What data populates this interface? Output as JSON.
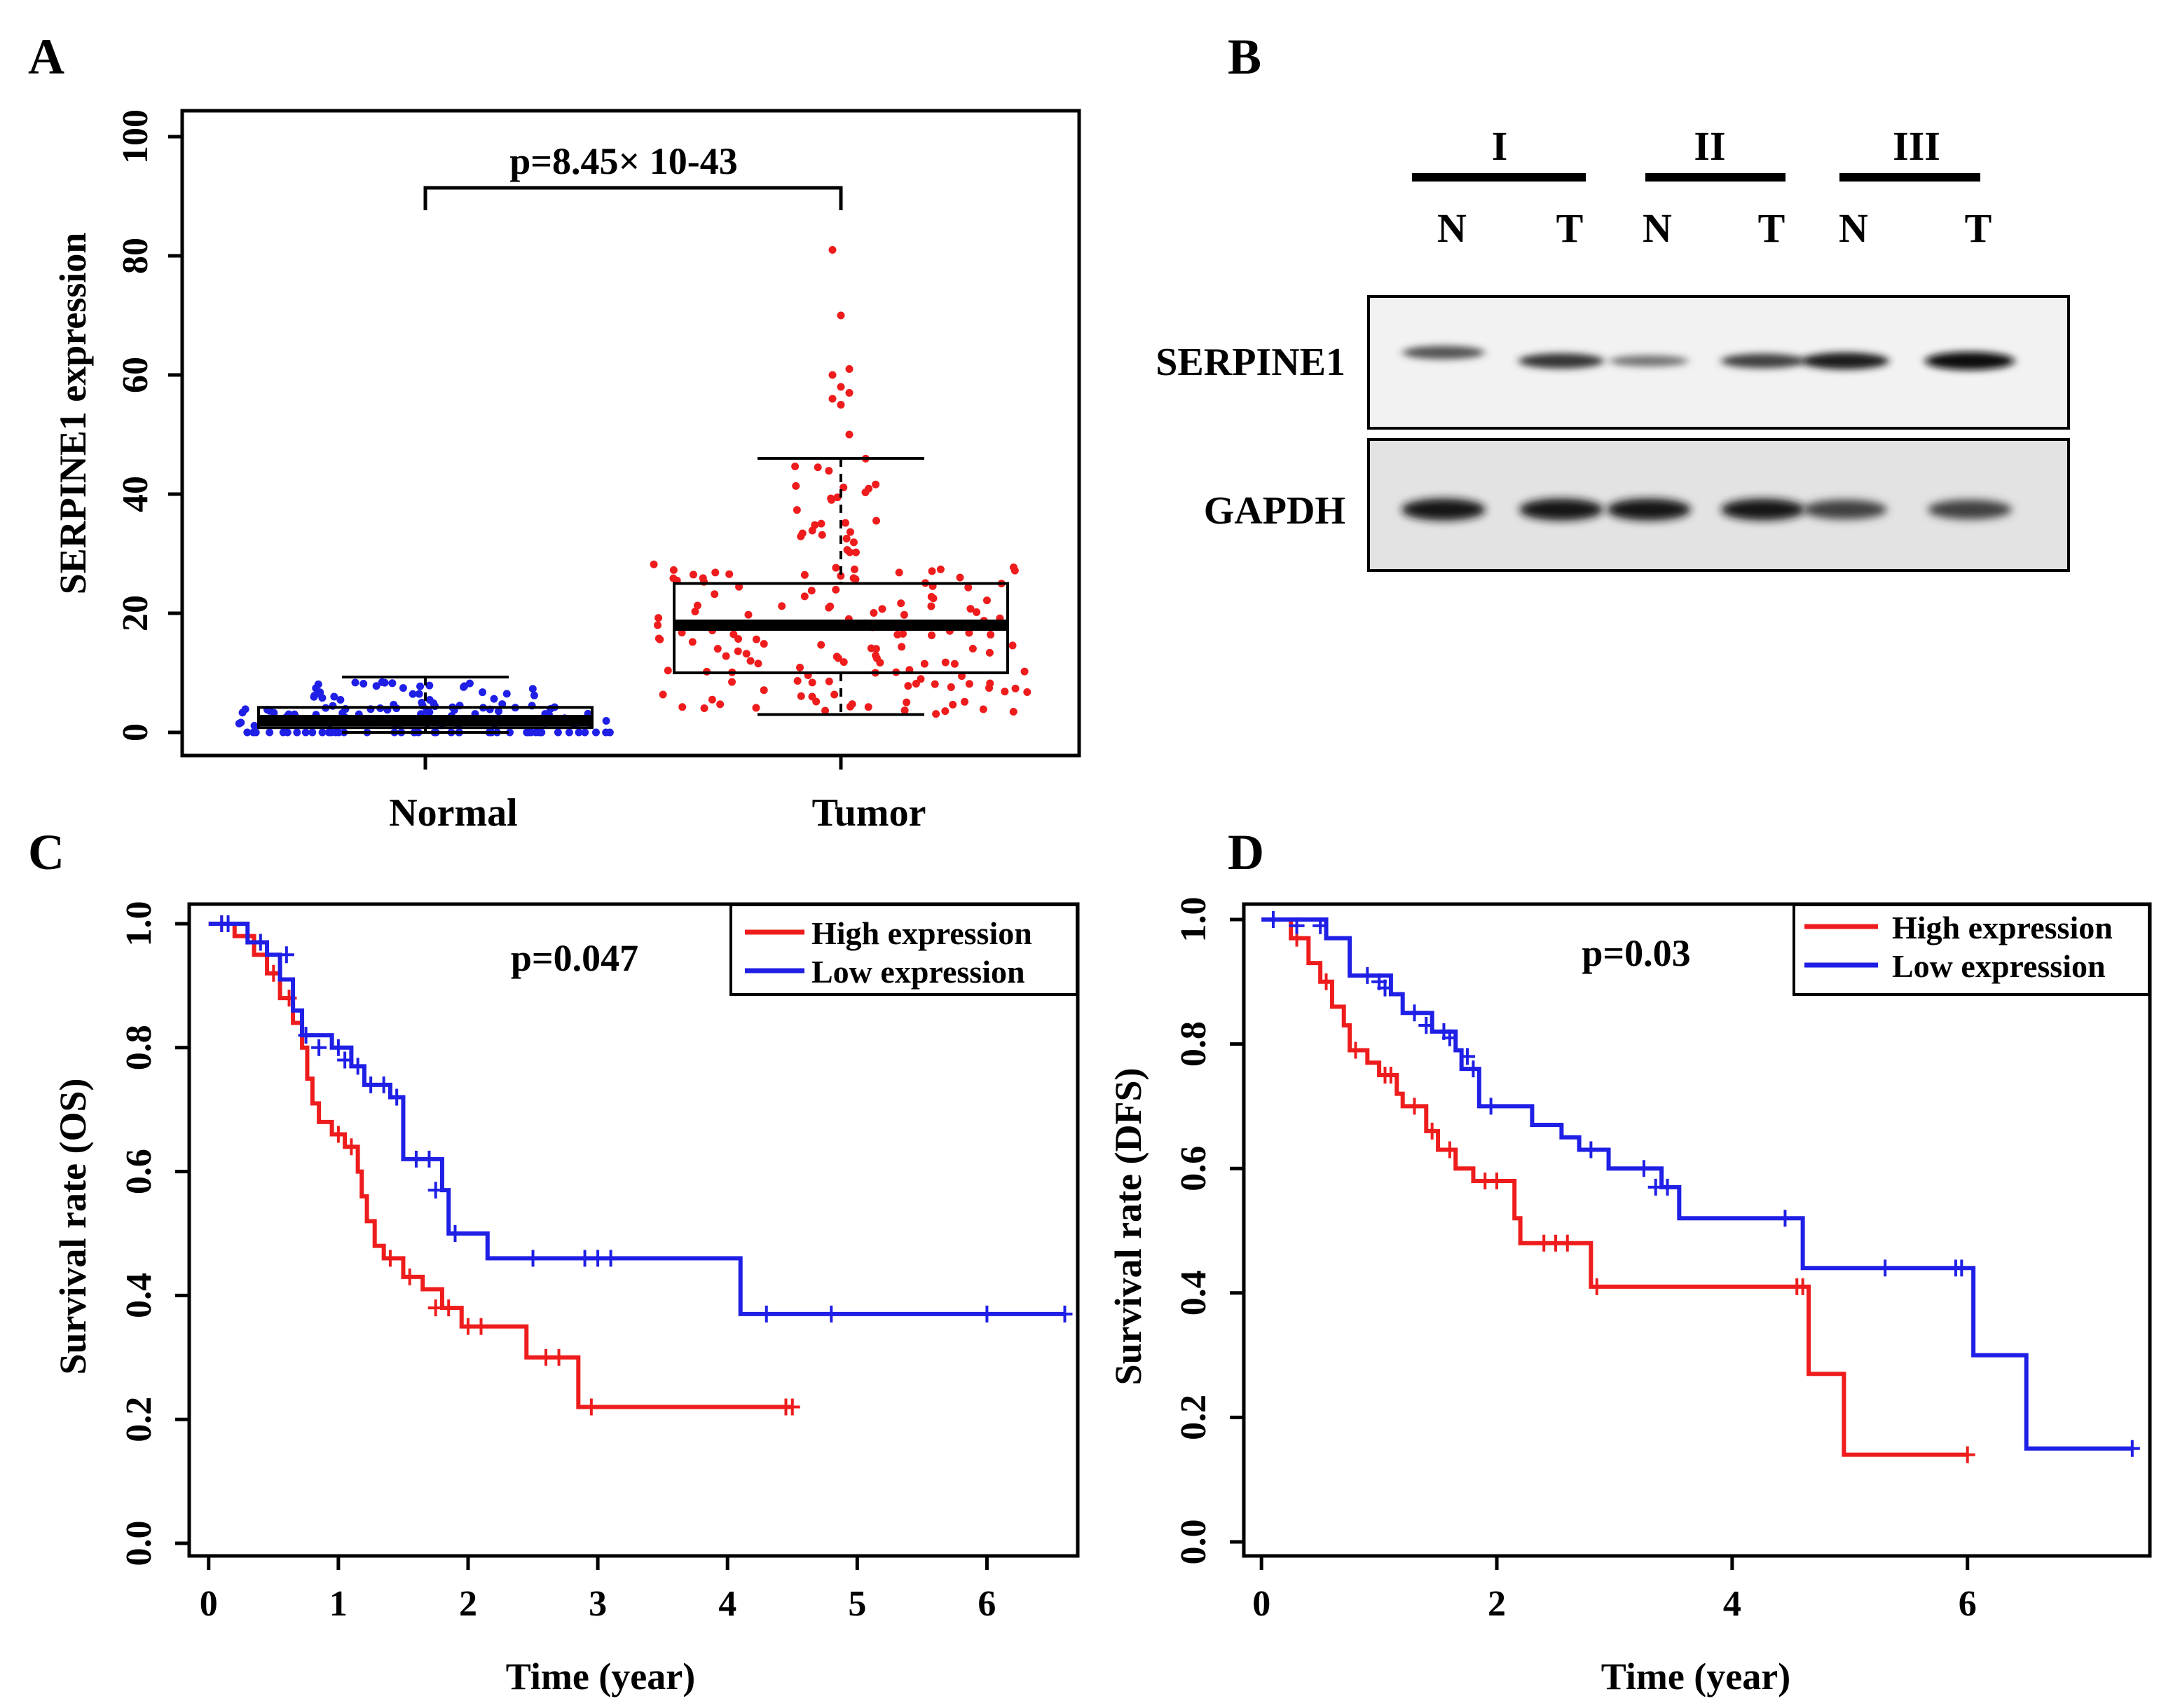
{
  "colors": {
    "red": "#ee1c1c",
    "blue": "#1f1fe6",
    "black": "#000000"
  },
  "chart_data": [
    {
      "panel": "A",
      "type": "box",
      "ylabel": "SERPINE1 expression",
      "yticks": [
        "0",
        "20",
        "40",
        "60",
        "80",
        "100"
      ],
      "ylim": [
        0,
        100
      ],
      "categories": [
        "Normal",
        "Tumor"
      ],
      "annotation": "p=8.45× 10-43",
      "boxes": [
        {
          "name": "Normal",
          "color": "#1f1fe6",
          "whisker_low": 0,
          "q1": 0.8,
          "median": 2,
          "q3": 4.2,
          "whisker_high": 9.3
        },
        {
          "name": "Tumor",
          "color": "#ee1c1c",
          "whisker_low": 3,
          "q1": 10,
          "median": 18,
          "q3": 25,
          "whisker_high": 46
        }
      ],
      "tumor_outliers": [
        81,
        70,
        61,
        60,
        58,
        57,
        56,
        55,
        50
      ]
    },
    {
      "panel": "B",
      "type": "western-blot",
      "groups": [
        "I",
        "II",
        "III"
      ],
      "lanes": [
        "N",
        "T",
        "N",
        "T",
        "N",
        "T"
      ],
      "rows": [
        {
          "label": "SERPINE1",
          "band_intensity": [
            0.62,
            0.78,
            0.45,
            0.72,
            0.9,
            1.0
          ]
        },
        {
          "label": "GAPDH",
          "band_intensity": [
            0.95,
            0.95,
            0.95,
            0.92,
            0.72,
            0.72
          ]
        }
      ]
    },
    {
      "panel": "C",
      "type": "line",
      "xlabel": "Time (year)",
      "ylabel": "Survival rate (OS)",
      "xticks": [
        "0",
        "1",
        "2",
        "3",
        "4",
        "5",
        "6"
      ],
      "yticks": [
        "0.0",
        "0.2",
        "0.4",
        "0.6",
        "0.8",
        "1.0"
      ],
      "xlim": [
        -0.15,
        6.7
      ],
      "ylim": [
        0,
        1.0
      ],
      "annotation": "p=0.047",
      "series": [
        {
          "name": "High expression",
          "color": "#ee1c1c",
          "steps": [
            [
              0,
              1.0
            ],
            [
              0.2,
              0.98
            ],
            [
              0.35,
              0.95
            ],
            [
              0.45,
              0.92
            ],
            [
              0.55,
              0.88
            ],
            [
              0.65,
              0.84
            ],
            [
              0.72,
              0.8
            ],
            [
              0.76,
              0.75
            ],
            [
              0.8,
              0.71
            ],
            [
              0.85,
              0.68
            ],
            [
              0.95,
              0.66
            ],
            [
              1.05,
              0.64
            ],
            [
              1.15,
              0.6
            ],
            [
              1.18,
              0.56
            ],
            [
              1.22,
              0.52
            ],
            [
              1.28,
              0.48
            ],
            [
              1.35,
              0.46
            ],
            [
              1.5,
              0.43
            ],
            [
              1.65,
              0.41
            ],
            [
              1.8,
              0.38
            ],
            [
              1.95,
              0.35
            ],
            [
              2.45,
              0.3
            ],
            [
              2.85,
              0.22
            ],
            [
              4.5,
              0.22
            ]
          ],
          "censor": [
            [
              0.1,
              1.0
            ],
            [
              0.3,
              0.98
            ],
            [
              0.5,
              0.92
            ],
            [
              0.62,
              0.88
            ],
            [
              1.0,
              0.66
            ],
            [
              1.1,
              0.64
            ],
            [
              1.4,
              0.46
            ],
            [
              1.55,
              0.43
            ],
            [
              1.75,
              0.38
            ],
            [
              1.85,
              0.38
            ],
            [
              2.0,
              0.35
            ],
            [
              2.1,
              0.35
            ],
            [
              2.6,
              0.3
            ],
            [
              2.7,
              0.3
            ],
            [
              2.95,
              0.22
            ],
            [
              4.45,
              0.22
            ],
            [
              4.5,
              0.22
            ]
          ]
        },
        {
          "name": "Low expression",
          "color": "#1f1fe6",
          "steps": [
            [
              0,
              1.0
            ],
            [
              0.3,
              0.97
            ],
            [
              0.45,
              0.95
            ],
            [
              0.55,
              0.91
            ],
            [
              0.65,
              0.86
            ],
            [
              0.72,
              0.82
            ],
            [
              0.95,
              0.8
            ],
            [
              1.1,
              0.77
            ],
            [
              1.2,
              0.74
            ],
            [
              1.4,
              0.72
            ],
            [
              1.5,
              0.71
            ],
            [
              1.5,
              0.62
            ],
            [
              1.8,
              0.57
            ],
            [
              1.85,
              0.5
            ],
            [
              2.15,
              0.46
            ],
            [
              4.1,
              0.46
            ],
            [
              4.1,
              0.37
            ],
            [
              6.6,
              0.37
            ]
          ],
          "censor": [
            [
              0.1,
              1.0
            ],
            [
              0.15,
              1.0
            ],
            [
              0.4,
              0.97
            ],
            [
              0.6,
              0.95
            ],
            [
              0.75,
              0.82
            ],
            [
              0.85,
              0.8
            ],
            [
              1.0,
              0.8
            ],
            [
              1.05,
              0.78
            ],
            [
              1.15,
              0.77
            ],
            [
              1.25,
              0.74
            ],
            [
              1.35,
              0.74
            ],
            [
              1.45,
              0.72
            ],
            [
              1.6,
              0.62
            ],
            [
              1.7,
              0.62
            ],
            [
              1.75,
              0.57
            ],
            [
              1.9,
              0.5
            ],
            [
              2.5,
              0.46
            ],
            [
              2.9,
              0.46
            ],
            [
              3.0,
              0.46
            ],
            [
              3.1,
              0.46
            ],
            [
              4.3,
              0.37
            ],
            [
              4.8,
              0.37
            ],
            [
              6.0,
              0.37
            ],
            [
              6.6,
              0.37
            ]
          ]
        }
      ]
    },
    {
      "panel": "D",
      "type": "line",
      "xlabel": "Time (year)",
      "ylabel": "Survival rate (DFS)",
      "xticks": [
        "0",
        "2",
        "4",
        "6"
      ],
      "yticks": [
        "0.0",
        "0.2",
        "0.4",
        "0.6",
        "0.8",
        "1.0"
      ],
      "xlim": [
        -0.15,
        7.55
      ],
      "ylim": [
        0,
        1.0
      ],
      "annotation": "p=0.03",
      "series": [
        {
          "name": "High expression",
          "color": "#ee1c1c",
          "steps": [
            [
              0,
              1.0
            ],
            [
              0.25,
              0.97
            ],
            [
              0.4,
              0.93
            ],
            [
              0.5,
              0.9
            ],
            [
              0.6,
              0.86
            ],
            [
              0.7,
              0.83
            ],
            [
              0.75,
              0.79
            ],
            [
              0.9,
              0.77
            ],
            [
              1.0,
              0.75
            ],
            [
              1.15,
              0.72
            ],
            [
              1.2,
              0.7
            ],
            [
              1.4,
              0.66
            ],
            [
              1.5,
              0.63
            ],
            [
              1.65,
              0.6
            ],
            [
              1.8,
              0.58
            ],
            [
              2.15,
              0.52
            ],
            [
              2.2,
              0.48
            ],
            [
              2.8,
              0.41
            ],
            [
              4.65,
              0.41
            ],
            [
              4.65,
              0.27
            ],
            [
              4.95,
              0.27
            ],
            [
              4.95,
              0.14
            ],
            [
              6.0,
              0.14
            ]
          ],
          "censor": [
            [
              0.3,
              0.97
            ],
            [
              0.55,
              0.9
            ],
            [
              0.8,
              0.79
            ],
            [
              1.05,
              0.75
            ],
            [
              1.1,
              0.75
            ],
            [
              1.3,
              0.7
            ],
            [
              1.45,
              0.66
            ],
            [
              1.6,
              0.63
            ],
            [
              1.9,
              0.58
            ],
            [
              2.0,
              0.58
            ],
            [
              2.4,
              0.48
            ],
            [
              2.5,
              0.48
            ],
            [
              2.6,
              0.48
            ],
            [
              2.85,
              0.41
            ],
            [
              4.55,
              0.41
            ],
            [
              4.6,
              0.41
            ],
            [
              6.0,
              0.14
            ]
          ]
        },
        {
          "name": "Low expression",
          "color": "#1f1fe6",
          "steps": [
            [
              0,
              1.0
            ],
            [
              0.55,
              0.97
            ],
            [
              0.75,
              0.91
            ],
            [
              1.1,
              0.88
            ],
            [
              1.2,
              0.85
            ],
            [
              1.45,
              0.82
            ],
            [
              1.65,
              0.79
            ],
            [
              1.7,
              0.76
            ],
            [
              1.85,
              0.7
            ],
            [
              2.3,
              0.67
            ],
            [
              2.55,
              0.65
            ],
            [
              2.7,
              0.63
            ],
            [
              2.95,
              0.6
            ],
            [
              3.4,
              0.57
            ],
            [
              3.55,
              0.52
            ],
            [
              4.5,
              0.52
            ],
            [
              4.6,
              0.44
            ],
            [
              6.05,
              0.44
            ],
            [
              6.05,
              0.3
            ],
            [
              6.5,
              0.3
            ],
            [
              6.5,
              0.15
            ],
            [
              7.4,
              0.15
            ]
          ],
          "censor": [
            [
              0.1,
              1.0
            ],
            [
              0.3,
              0.99
            ],
            [
              0.5,
              0.99
            ],
            [
              0.9,
              0.91
            ],
            [
              1.0,
              0.9
            ],
            [
              1.05,
              0.89
            ],
            [
              1.3,
              0.85
            ],
            [
              1.4,
              0.83
            ],
            [
              1.55,
              0.82
            ],
            [
              1.6,
              0.81
            ],
            [
              1.75,
              0.78
            ],
            [
              1.8,
              0.76
            ],
            [
              1.95,
              0.7
            ],
            [
              2.8,
              0.63
            ],
            [
              3.25,
              0.6
            ],
            [
              3.35,
              0.57
            ],
            [
              3.45,
              0.57
            ],
            [
              4.45,
              0.52
            ],
            [
              5.3,
              0.44
            ],
            [
              5.9,
              0.44
            ],
            [
              5.95,
              0.44
            ],
            [
              7.4,
              0.15
            ]
          ]
        }
      ]
    }
  ]
}
